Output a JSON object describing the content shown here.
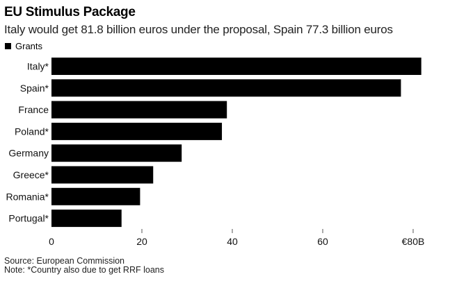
{
  "chart_data": {
    "type": "bar",
    "orientation": "horizontal",
    "title": "EU Stimulus Package",
    "subtitle": "Italy would get 81.8 billion euros under the proposal, Spain 77.3 billion euros",
    "categories": [
      "Italy*",
      "Spain*",
      "France",
      "Poland*",
      "Germany",
      "Greece*",
      "Romania*",
      "Portugal*"
    ],
    "series": [
      {
        "name": "Grants",
        "color": "#000000",
        "values": [
          81.8,
          77.3,
          38.8,
          37.7,
          28.8,
          22.5,
          19.6,
          15.5
        ]
      }
    ],
    "legend": {
      "position": "top-left",
      "entries": [
        "Grants"
      ]
    },
    "xlabel": "",
    "ylabel": "",
    "xlim": [
      0,
      85
    ],
    "x_ticks": [
      0,
      20,
      40,
      60,
      80
    ],
    "x_tick_labels": [
      "0",
      "20",
      "40",
      "60",
      "€80B"
    ],
    "grid": false,
    "source": "Source: European Commission",
    "note": "Note: *Country also due to get RRF loans"
  }
}
